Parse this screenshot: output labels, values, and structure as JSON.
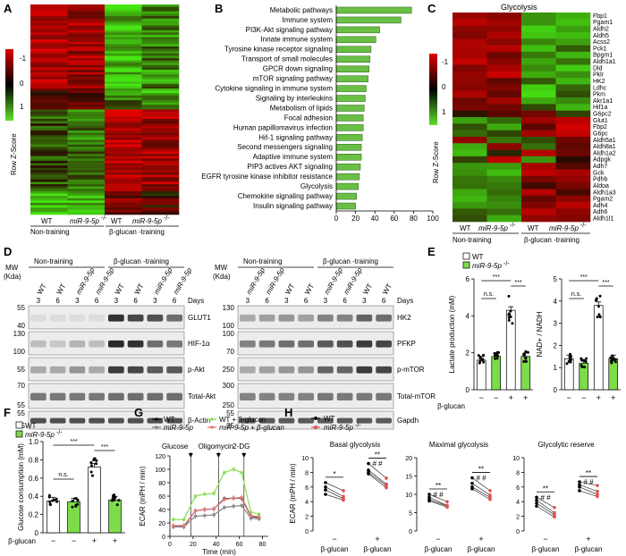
{
  "panels": {
    "A": "A",
    "B": "B",
    "C": "C",
    "D": "D",
    "E": "E",
    "F": "F",
    "G": "G",
    "H": "H"
  },
  "colors": {
    "heat_red": "#e00000",
    "heat_black": "#000000",
    "heat_green": "#5fe02a",
    "bar_green": "#6abf45",
    "ko_green": "#7ddc4a",
    "wt_line": "#111111",
    "ko_line": "#8a8a8a",
    "wt_bglucan": "#8fe05a",
    "ko_bglucan": "#e87d7d",
    "ko_point": "#e05050"
  },
  "panelA": {
    "scale_label": "Row Z-Score",
    "scale_ticks": [
      "-1",
      "0",
      "1"
    ],
    "columns": [
      "WT",
      "miR-9-5p",
      "WT",
      "miR-9-5p"
    ],
    "groups": [
      "Non-training",
      "β-glucan -training"
    ]
  },
  "panelB": {
    "chart_data": {
      "type": "bar",
      "orientation": "horizontal",
      "categories": [
        "Metabolic pathways",
        "Immune system",
        "PI3K-Akt signaling pathway",
        "Innate immune system",
        "Tyrosine kinase receptor signaling",
        "Transport of small molecules",
        "GPCR down signaling",
        "mTOR signaling pathway",
        "Cytokine signaling in immune system",
        "Signaling by interleukins",
        "Metabolism of lipids",
        "Focal adhesion",
        "Human papillomavirus infection",
        "Hif-1 signaling pathway",
        "Second messengers signaling",
        "Adaptive immune system",
        "PIP3 actives AKT signaling",
        "EGFR tyrosine kinase inhibitor resistance",
        "Glycolysis",
        "Chemokine signaling pathway",
        "Insulin signaling pathway"
      ],
      "values": [
        78,
        67,
        45,
        41,
        36,
        35,
        34,
        33,
        31,
        30,
        29,
        28,
        28,
        27,
        26,
        26,
        25,
        24,
        23,
        21,
        20
      ],
      "xlim": [
        0,
        100
      ],
      "xticks": [
        "0",
        "20",
        "40",
        "60",
        "80",
        "100"
      ]
    }
  },
  "panelC": {
    "title": "Glycolysis",
    "scale_label": "Row Z-Score",
    "scale_ticks": [
      "-1",
      "0",
      "1"
    ],
    "genes": [
      "Fbp1",
      "Pgam1",
      "Aldh2",
      "Aldh5",
      "Acss2",
      "Pck1",
      "Bpgm1",
      "Aldh1a1",
      "Dld",
      "Pklr",
      "HK2",
      "Ldhc",
      "Pkm",
      "Akr1a1",
      "Hif1a",
      "G6pc2",
      "Glut1",
      "Fbp2",
      "G6pc",
      "Aldh5a1",
      "Aldh8a1",
      "Aldh1a2",
      "Adpgk",
      "Adh7",
      "Gck",
      "Pdhb",
      "Aldoa",
      "Aldh1a3",
      "Pgam2",
      "Adh4",
      "Adh6",
      "Aldh1l1"
    ],
    "columns": [
      "WT",
      "miR-9-5p",
      "WT",
      "miR-9-5p"
    ],
    "groups": [
      "Non-training",
      "β-glucan -training"
    ]
  },
  "panelD": {
    "mw": "MW",
    "kda": "(Kda)",
    "days": "Days",
    "group_non": "Non-training",
    "group_bg": "β-glucan -training",
    "left_cols": [
      "WT",
      "WT",
      "miR-9-5p",
      "miR-9-5p",
      "WT",
      "WT",
      "miR-9-5p",
      "miR-9-5p"
    ],
    "left_days": [
      "3",
      "6",
      "3",
      "6",
      "3",
      "6",
      "3",
      "6"
    ],
    "right_cols": [
      "miR-9-5p",
      "miR-9-5p",
      "WT",
      "WT",
      "miR-9-5p",
      "miR-9-5p",
      "WT",
      "WT"
    ],
    "right_days": [
      "3",
      "6",
      "3",
      "6",
      "3",
      "6",
      "3",
      "6"
    ],
    "left_blots": [
      {
        "label": "GLUT1",
        "mw": [
          "55",
          "40"
        ]
      },
      {
        "label": "HIF-1α",
        "mw": [
          "130",
          "100"
        ]
      },
      {
        "label": "p-Akt",
        "mw": [
          "55"
        ]
      },
      {
        "label": "Total-Akt",
        "mw": [
          "70",
          "55"
        ]
      },
      {
        "label": "β-Actin",
        "mw": [
          "55",
          "35"
        ]
      }
    ],
    "right_blots": [
      {
        "label": "HK2",
        "mw": [
          "130",
          "100"
        ]
      },
      {
        "label": "PFKP",
        "mw": [
          "100",
          "70"
        ]
      },
      {
        "label": "p-mTOR",
        "mw": [
          "250"
        ]
      },
      {
        "label": "Total-mTOR",
        "mw": [
          "300",
          "250"
        ]
      },
      {
        "label": "Gapdh",
        "mw": [
          "55",
          "35"
        ]
      }
    ]
  },
  "legend": {
    "wt": "WT",
    "ko": "miR-9-5p",
    "ko_sup": "-/-",
    "bglucan": "β-glucan"
  },
  "panelE": {
    "left": {
      "ylabel": "Lactate production (mM)",
      "yticks": [
        "0",
        "2",
        "4",
        "6"
      ],
      "ylim": [
        0,
        6
      ],
      "values": [
        1.6,
        1.8,
        4.3,
        1.8
      ],
      "sig": [
        "n.s.",
        "***",
        "***"
      ]
    },
    "right": {
      "ylabel": "NAD+ / NADH",
      "yticks": [
        "0",
        "1",
        "2",
        "3",
        "4",
        "5"
      ],
      "ylim": [
        0,
        5
      ],
      "values": [
        1.4,
        1.2,
        3.8,
        1.4
      ],
      "sig": [
        "n.s.",
        "***",
        "***"
      ]
    },
    "xsigns": [
      "−",
      "−",
      "+",
      "+"
    ]
  },
  "panelF": {
    "ylabel": "Glucose consumption (mM)",
    "yticks": [
      "0",
      "0.2",
      "0.4",
      "0.6",
      "0.8",
      "1.0"
    ],
    "ylim": [
      0,
      1.0
    ],
    "values": [
      0.35,
      0.34,
      0.72,
      0.36
    ],
    "sig": [
      "n.s.",
      "***",
      "***"
    ],
    "xsigns": [
      "−",
      "−",
      "+",
      "+"
    ]
  },
  "panelG": {
    "legend": [
      "WT",
      "miR-9-5p",
      "WT + β-glucan",
      "miR-9-5p + β-glucan"
    ],
    "injections": [
      "Glucose",
      "Oligomycin",
      "2-DG"
    ],
    "xlabel": "Time (min)",
    "ylabel": "ECAR (mPH / min)",
    "xticks": [
      "0",
      "20",
      "40",
      "60",
      "80"
    ],
    "yticks": [
      "0",
      "20",
      "40",
      "60",
      "80",
      "100",
      "120"
    ],
    "chart_data": {
      "type": "line",
      "x": [
        3,
        12,
        22,
        30,
        38,
        47,
        55,
        62,
        70,
        77
      ],
      "series": [
        {
          "name": "WT",
          "values": [
            15,
            15,
            38,
            40,
            41,
            56,
            57,
            57,
            30,
            28
          ]
        },
        {
          "name": "miR-9-5p",
          "values": [
            14,
            14,
            30,
            31,
            32,
            43,
            45,
            46,
            27,
            26
          ]
        },
        {
          "name": "WT + β-glucan",
          "values": [
            25,
            25,
            60,
            63,
            64,
            95,
            100,
            95,
            36,
            33
          ]
        },
        {
          "name": "miR-9-5p + β-glucan",
          "values": [
            16,
            16,
            38,
            40,
            41,
            55,
            57,
            58,
            31,
            29
          ]
        }
      ],
      "xlim": [
        0,
        85
      ],
      "ylim": [
        0,
        120
      ]
    }
  },
  "panelH": {
    "ylabel": "ECAR (mPH / min)",
    "xgroups": [
      "−",
      "+"
    ],
    "xlabel": "β-glucan",
    "plots": [
      {
        "title": "Basal glycolysis",
        "yticks": [
          "0",
          "2",
          "4",
          "6",
          "8",
          "10"
        ],
        "ymax": 10,
        "wt_minus": [
          6.6,
          6.0,
          5.6,
          5.0
        ],
        "ko_minus": [
          5.5,
          4.7,
          4.4,
          4.2
        ],
        "wt_plus": [
          9.2,
          8.3,
          8.0,
          7.8
        ],
        "ko_plus": [
          7.2,
          6.4,
          6.2,
          5.9
        ],
        "sig_minus": "*",
        "sig_plus": "**",
        "hash_minus": "",
        "hash_plus": "# #"
      },
      {
        "title": "Maximal glycolysis",
        "yticks": [
          "0",
          "5",
          "10",
          "15",
          "20"
        ],
        "ymax": 20,
        "wt_minus": [
          10.0,
          9.2,
          8.6,
          8.2
        ],
        "ko_minus": [
          8.0,
          7.0,
          6.8,
          6.5
        ],
        "wt_plus": [
          14.5,
          13.0,
          12.0,
          11.5
        ],
        "ko_plus": [
          11.0,
          9.8,
          9.2,
          8.6
        ],
        "sig_minus": "**",
        "sig_plus": "**",
        "hash_minus": "# #",
        "hash_plus": "# #"
      },
      {
        "title": "Glycolytic reserve",
        "yticks": [
          "0",
          "2",
          "4",
          "6",
          "8",
          "10"
        ],
        "ymax": 10,
        "wt_minus": [
          4.6,
          4.2,
          3.8,
          3.4
        ],
        "ko_minus": [
          3.2,
          2.5,
          2.2,
          1.9
        ],
        "wt_plus": [
          6.7,
          6.3,
          6.0,
          5.5
        ],
        "ko_plus": [
          6.2,
          5.4,
          5.0,
          4.7
        ],
        "sig_minus": "**",
        "sig_plus": "**",
        "hash_minus": "# #",
        "hash_plus": "# #"
      }
    ]
  }
}
